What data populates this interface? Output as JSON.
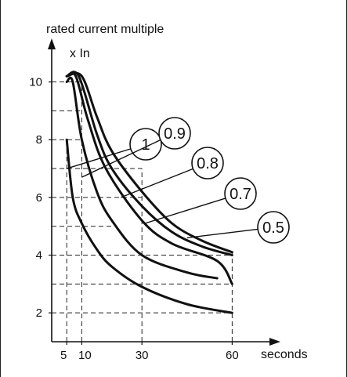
{
  "chart_data": {
    "type": "line",
    "title": "",
    "ylabel_line1": "rated current multiple",
    "ylabel_line2": "x In",
    "xlabel": "seconds",
    "x_ticks": [
      5,
      10,
      30,
      60
    ],
    "y_ticks": [
      2,
      4,
      6,
      8,
      10
    ],
    "xlim": [
      0,
      75
    ],
    "ylim": [
      1,
      11.4
    ],
    "grid_x_dashed": [
      5,
      10,
      30,
      60
    ],
    "grid_y_dashed": [
      2,
      3,
      4,
      5,
      6,
      7,
      8,
      9,
      10
    ],
    "colors": {
      "curve": "#111111",
      "grid": "#222222",
      "axis": "#111111"
    },
    "series": [
      {
        "name": "1",
        "x": [
          5,
          10,
          15,
          20,
          30,
          40,
          50,
          60
        ],
        "y": [
          10.2,
          10.2,
          8.8,
          7.6,
          6.2,
          5.1,
          4.5,
          4.1
        ]
      },
      {
        "name": "0.9",
        "x": [
          5,
          9,
          15,
          20,
          30,
          40,
          50,
          60
        ],
        "y": [
          10.2,
          10.2,
          8.2,
          7.0,
          5.7,
          4.8,
          4.3,
          4.0
        ]
      },
      {
        "name": "0.8",
        "x": [
          5,
          8,
          12,
          18,
          30,
          40,
          55,
          60
        ],
        "y": [
          10.2,
          10.2,
          8.7,
          7.0,
          5.2,
          4.4,
          3.8,
          3.0
        ]
      },
      {
        "name": "0.7",
        "x": [
          5,
          7,
          10,
          15,
          20,
          30,
          45,
          55
        ],
        "y": [
          10.0,
          10.0,
          8.0,
          6.2,
          5.2,
          4.0,
          3.4,
          3.2
        ]
      },
      {
        "name": "0.5",
        "x": [
          5,
          7,
          10,
          15,
          20,
          30,
          45,
          60
        ],
        "y": [
          8.0,
          6.0,
          5.1,
          4.2,
          3.6,
          2.9,
          2.3,
          2.0
        ]
      }
    ],
    "callouts": [
      {
        "label": "1",
        "target": [
          5,
          7
        ]
      },
      {
        "label": "0.9",
        "target": [
          10,
          6.7
        ]
      },
      {
        "label": "0.8",
        "target": [
          23,
          6
        ]
      },
      {
        "label": "0.7",
        "target": [
          31,
          5.1
        ]
      },
      {
        "label": "0.5",
        "target": [
          45,
          4.6
        ]
      }
    ]
  }
}
